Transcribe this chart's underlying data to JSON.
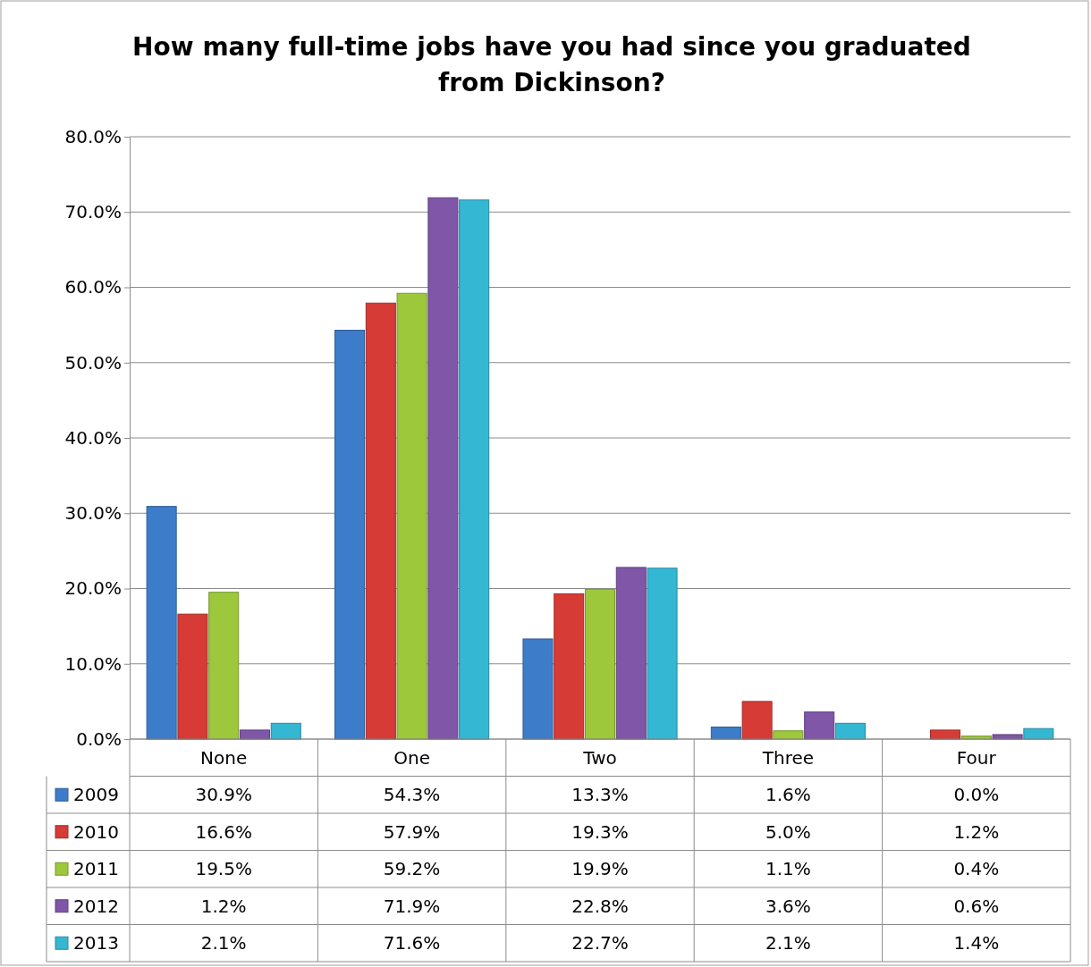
{
  "chart_data": {
    "type": "bar",
    "title": "How many full-time jobs have you had since you graduated from Dickinson?",
    "categories": [
      "None",
      "One",
      "Two",
      "Three",
      "Four"
    ],
    "series": [
      {
        "name": "2009",
        "color": "#3d7cc9",
        "values": [
          30.9,
          54.3,
          13.3,
          1.6,
          0.0
        ],
        "value_labels": [
          "30.9%",
          "54.3%",
          "13.3%",
          "1.6%",
          "0.0%"
        ]
      },
      {
        "name": "2010",
        "color": "#d63b36",
        "values": [
          16.6,
          57.9,
          19.3,
          5.0,
          1.2
        ],
        "value_labels": [
          "16.6%",
          "57.9%",
          "19.3%",
          "5.0%",
          "1.2%"
        ]
      },
      {
        "name": "2011",
        "color": "#9dc83c",
        "values": [
          19.5,
          59.2,
          19.9,
          1.1,
          0.4
        ],
        "value_labels": [
          "19.5%",
          "59.2%",
          "19.9%",
          "1.1%",
          "0.4%"
        ]
      },
      {
        "name": "2012",
        "color": "#7f56a8",
        "values": [
          1.2,
          71.9,
          22.8,
          3.6,
          0.6
        ],
        "value_labels": [
          "1.2%",
          "71.9%",
          "22.8%",
          "3.6%",
          "0.6%"
        ]
      },
      {
        "name": "2013",
        "color": "#34b7d3",
        "values": [
          2.1,
          71.6,
          22.7,
          2.1,
          1.4
        ],
        "value_labels": [
          "2.1%",
          "71.6%",
          "22.7%",
          "2.1%",
          "1.4%"
        ]
      }
    ],
    "ylim": [
      0,
      80
    ],
    "yticks": [
      {
        "value": 0,
        "label": "0.0%"
      },
      {
        "value": 10,
        "label": "10.0%"
      },
      {
        "value": 20,
        "label": "20.0%"
      },
      {
        "value": 30,
        "label": "30.0%"
      },
      {
        "value": 40,
        "label": "40.0%"
      },
      {
        "value": 50,
        "label": "50.0%"
      },
      {
        "value": 60,
        "label": "60.0%"
      },
      {
        "value": 70,
        "label": "70.0%"
      },
      {
        "value": 80,
        "label": "80.0%"
      }
    ],
    "grid": "y",
    "legend": "bottom"
  }
}
